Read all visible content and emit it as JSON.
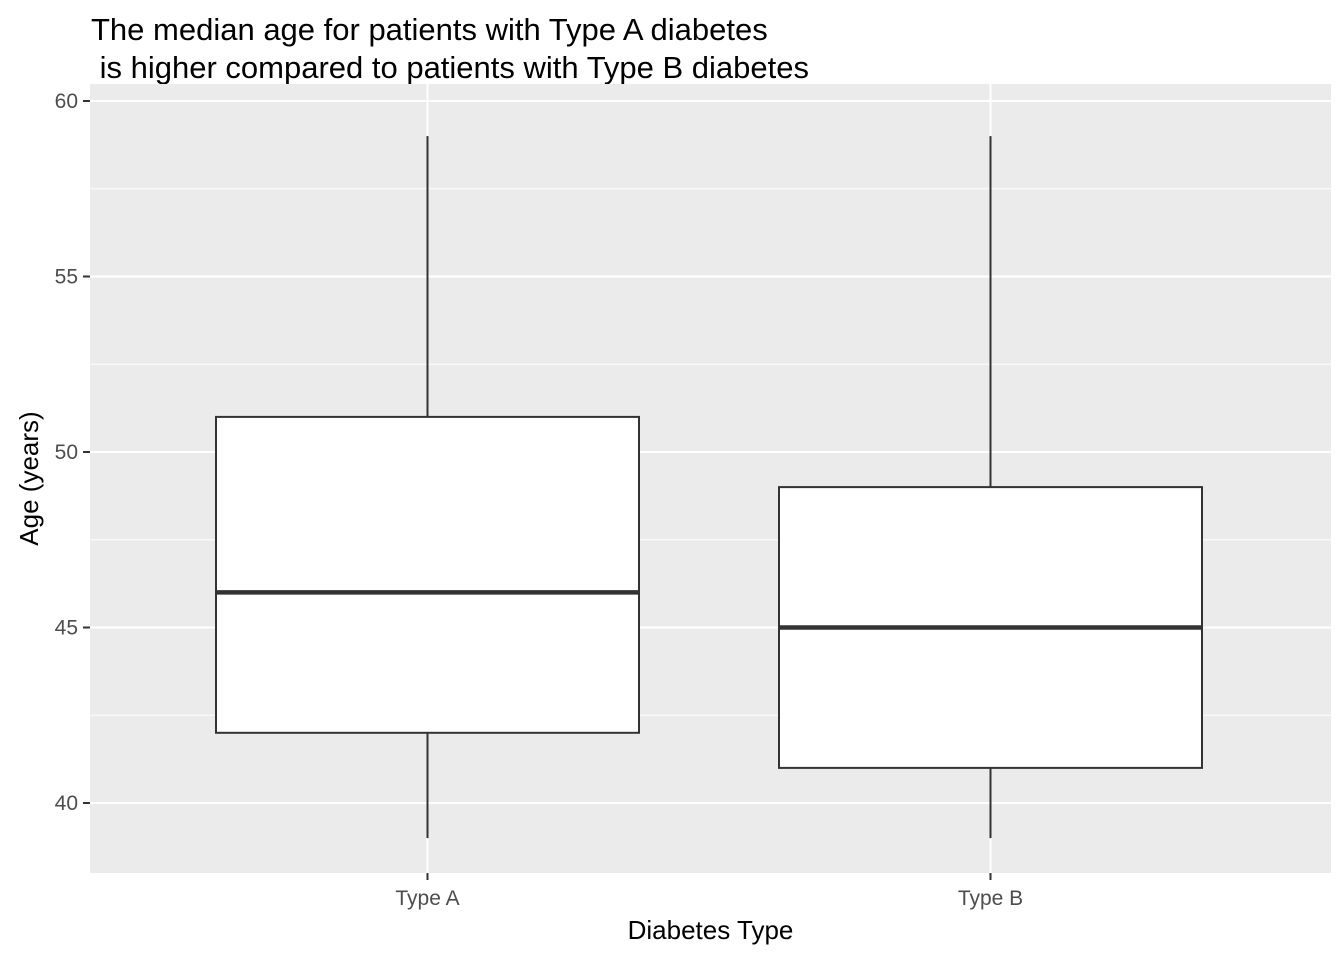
{
  "chart_data": {
    "type": "boxplot",
    "title": [
      "The median age for patients with Type A diabetes",
      " is higher compared to patients with Type B diabetes"
    ],
    "xlabel": "Diabetes Type",
    "ylabel": "Age (years)",
    "ylim": [
      38,
      60
    ],
    "yticks": [
      40,
      45,
      50,
      55,
      60
    ],
    "grid": true,
    "categories": [
      "Type A",
      "Type B"
    ],
    "boxes": [
      {
        "category": "Type A",
        "min": 39,
        "q1": 42,
        "median": 46,
        "q3": 51,
        "max": 59
      },
      {
        "category": "Type B",
        "min": 39,
        "q1": 41,
        "median": 45,
        "q3": 49,
        "max": 59
      }
    ],
    "colors": {
      "panel": "#ebebeb",
      "grid": "#ffffff",
      "box_fill": "#ffffff",
      "box_line": "#333333"
    }
  }
}
